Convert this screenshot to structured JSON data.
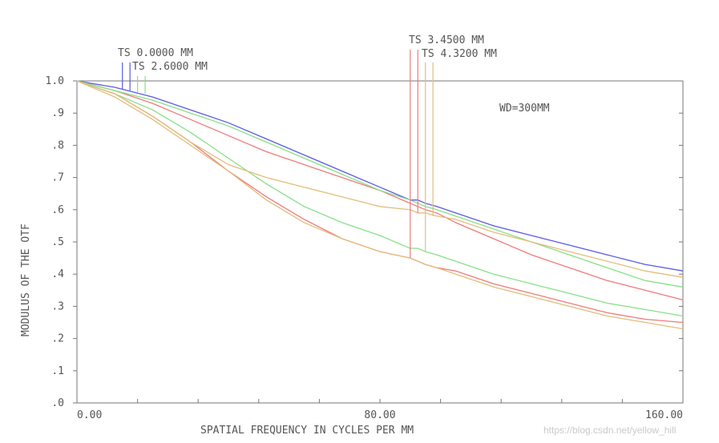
{
  "chart_data": {
    "type": "line",
    "title": "",
    "annotation": "WD=300MM",
    "xlabel": "SPATIAL FREQUENCY IN CYCLES PER MM",
    "ylabel": "MODULUS OF THE OTF",
    "xlim": [
      0,
      160
    ],
    "ylim": [
      0,
      1.0
    ],
    "x_tick_labels": [
      "0.00",
      "80.00",
      "160.00"
    ],
    "y_tick_labels": [
      ".0",
      ".1",
      ".2",
      ".3",
      ".4",
      ".5",
      ".6",
      ".7",
      ".8",
      ".9",
      "1.0"
    ],
    "legend_labels": [
      "TS 0.0000 MM",
      "TS 2.6000 MM",
      "TS 3.4500 MM",
      "TS 4.3200 MM"
    ],
    "grid": false,
    "x": [
      0,
      10,
      20,
      30,
      40,
      50,
      60,
      70,
      80,
      88,
      90,
      92,
      95,
      100,
      110,
      120,
      130,
      140,
      150,
      160
    ],
    "series": [
      {
        "color": "#5a5ae6",
        "values": [
          1.0,
          0.98,
          0.95,
          0.91,
          0.87,
          0.82,
          0.77,
          0.72,
          0.67,
          0.63,
          0.63,
          0.62,
          0.61,
          0.59,
          0.55,
          0.52,
          0.49,
          0.46,
          0.43,
          0.41
        ]
      },
      {
        "color": "#ef7b7b",
        "values": [
          1.0,
          0.97,
          0.93,
          0.88,
          0.83,
          0.78,
          0.74,
          0.7,
          0.66,
          0.62,
          0.61,
          0.6,
          0.59,
          0.56,
          0.51,
          0.46,
          0.42,
          0.38,
          0.35,
          0.32
        ]
      },
      {
        "color": "#ef7b7b",
        "values": [
          1.0,
          0.96,
          0.89,
          0.81,
          0.72,
          0.64,
          0.57,
          0.51,
          0.47,
          0.45,
          0.44,
          0.43,
          0.42,
          0.41,
          0.37,
          0.34,
          0.31,
          0.28,
          0.26,
          0.25
        ]
      },
      {
        "color": "#88e088",
        "values": [
          1.0,
          0.97,
          0.94,
          0.9,
          0.86,
          0.81,
          0.76,
          0.71,
          0.66,
          0.63,
          0.62,
          0.61,
          0.6,
          0.58,
          0.54,
          0.5,
          0.46,
          0.42,
          0.38,
          0.36
        ]
      },
      {
        "color": "#88e088",
        "values": [
          1.0,
          0.96,
          0.91,
          0.84,
          0.76,
          0.68,
          0.61,
          0.56,
          0.52,
          0.48,
          0.48,
          0.47,
          0.46,
          0.44,
          0.4,
          0.37,
          0.34,
          0.31,
          0.29,
          0.27
        ]
      },
      {
        "color": "#e3bd7c",
        "values": [
          1.0,
          0.96,
          0.89,
          0.81,
          0.74,
          0.7,
          0.67,
          0.64,
          0.61,
          0.6,
          0.59,
          0.59,
          0.58,
          0.57,
          0.53,
          0.5,
          0.47,
          0.44,
          0.41,
          0.39
        ]
      },
      {
        "color": "#e3bd7c",
        "values": [
          1.0,
          0.95,
          0.88,
          0.8,
          0.72,
          0.63,
          0.56,
          0.51,
          0.47,
          0.45,
          0.44,
          0.43,
          0.42,
          0.4,
          0.36,
          0.33,
          0.3,
          0.27,
          0.25,
          0.23
        ]
      }
    ],
    "markers": [
      {
        "color": "#5a5ae6",
        "x": 12.0,
        "y": 0.975
      },
      {
        "color": "#5a5ae6",
        "x": 14.0,
        "y": 0.97
      },
      {
        "color": "#ef7b7b",
        "x": 88.0,
        "y": 0.45
      },
      {
        "color": "#ef7b7b",
        "x": 90.0,
        "y": 0.59
      },
      {
        "color": "#88e088",
        "x": 16.0,
        "y": 0.965
      },
      {
        "color": "#88e088",
        "x": 18.0,
        "y": 0.96
      },
      {
        "color": "#e3bd7c",
        "x": 92.0,
        "y": 0.47
      },
      {
        "color": "#e3bd7c",
        "x": 94.0,
        "y": 0.58
      }
    ]
  },
  "watermark": "https://blog.csdn.net/yellow_hill"
}
